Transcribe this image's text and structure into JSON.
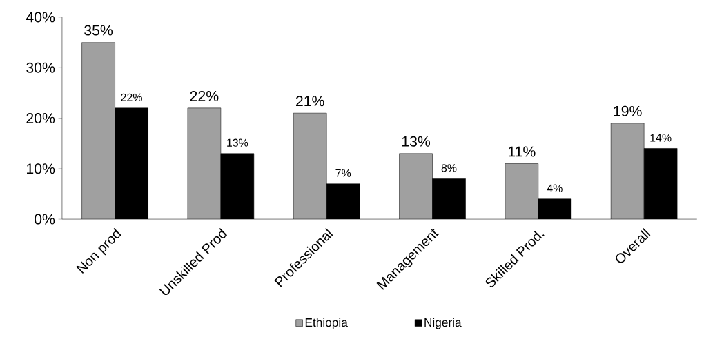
{
  "chart_data": {
    "type": "bar",
    "categories": [
      "Non prod",
      "Unskilled Prod",
      "Professional",
      "Management",
      "Skilled Prod.",
      "Overall"
    ],
    "series": [
      {
        "name": "Ethiopia",
        "color": "#a0a0a0",
        "values": [
          35,
          22,
          21,
          13,
          11,
          19
        ],
        "value_labels": [
          "35%",
          "22%",
          "21%",
          "13%",
          "11%",
          "19%"
        ]
      },
      {
        "name": "Nigeria",
        "color": "#000000",
        "values": [
          22,
          13,
          7,
          8,
          4,
          14
        ],
        "value_labels": [
          "22%",
          "13%",
          "7%",
          "8%",
          "4%",
          "14%"
        ]
      }
    ],
    "ylim": [
      0,
      40
    ],
    "yticks": [
      {
        "value": 0,
        "label": "0%"
      },
      {
        "value": 10,
        "label": "10%"
      },
      {
        "value": 20,
        "label": "20%"
      },
      {
        "value": 30,
        "label": "30%"
      },
      {
        "value": 40,
        "label": "40%"
      }
    ],
    "grid": false,
    "legend": "bottom"
  }
}
